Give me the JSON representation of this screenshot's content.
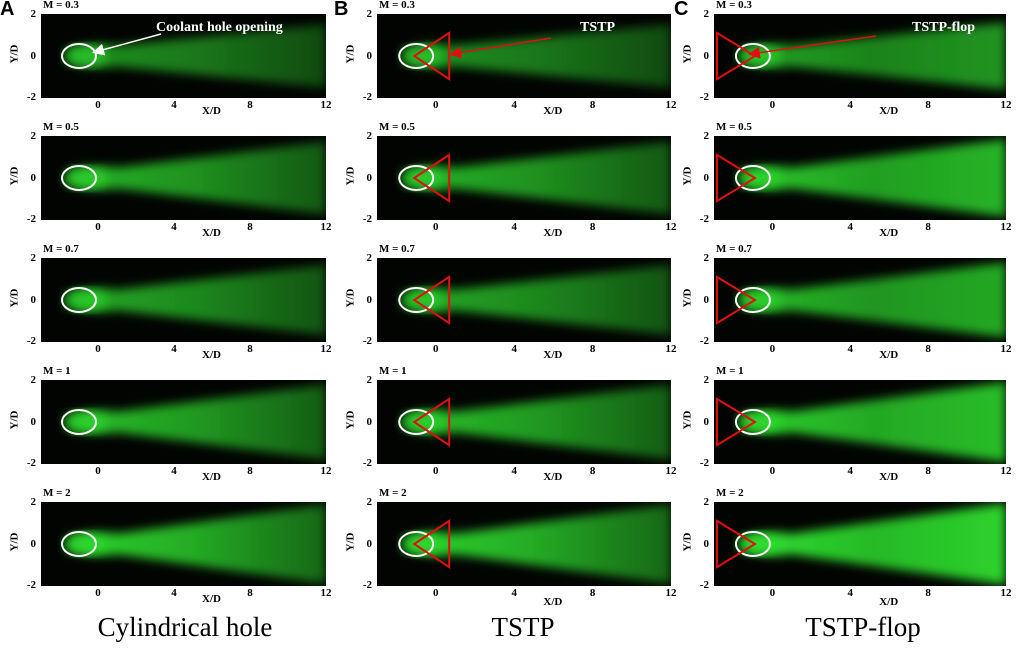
{
  "columns": [
    {
      "letter": "A",
      "caption": "Cylindrical hole",
      "annotation": "Coolant hole opening",
      "shape": "circle"
    },
    {
      "letter": "B",
      "caption": "TSTP",
      "annotation": "TSTP",
      "shape": "tri-right"
    },
    {
      "letter": "C",
      "caption": "TSTP-flop",
      "annotation": "TSTP-flop",
      "shape": "tri-left"
    }
  ],
  "panels": {
    "m_labels": [
      "M = 0.3",
      "M = 0.5",
      "M = 0.7",
      "M = 1",
      "M = 2"
    ]
  },
  "axes": {
    "y_label": "Y/D",
    "x_label": "X/D",
    "y_ticks": [
      "2",
      "0",
      "-2"
    ],
    "x_ticks": [
      "0",
      "4",
      "8",
      "12"
    ]
  },
  "colors": {
    "jet_green": "#2fe02f",
    "hole_outline": "#ffffff",
    "shape_outline": "#e01010",
    "arrow_red": "#e01010"
  }
}
